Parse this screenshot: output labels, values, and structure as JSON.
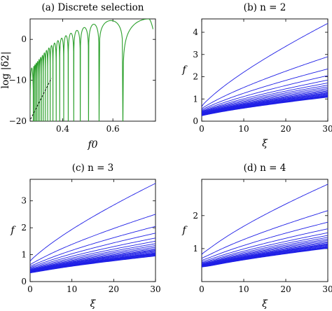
{
  "chart_data": [
    {
      "type": "line",
      "title": "(a) Discrete selection",
      "xlabel": "f0",
      "ylabel": "log |δ2|",
      "xlim": [
        0.27,
        0.77
      ],
      "ylim": [
        -20,
        5
      ],
      "xticks": [
        0.4,
        0.6
      ],
      "xtick_labels": [
        "0.4",
        "0.6"
      ],
      "yticks": [
        -20,
        -10,
        0
      ],
      "ytick_labels": [
        "−20",
        "−10",
        "0"
      ],
      "line_color": "#2ca02c",
      "cusp_roots": [
        0.283,
        0.287,
        0.292,
        0.297,
        0.303,
        0.309,
        0.316,
        0.323,
        0.331,
        0.34,
        0.35,
        0.361,
        0.374,
        0.388,
        0.404,
        0.422,
        0.444,
        0.47,
        0.503,
        0.545,
        0.64
      ],
      "hump_maxima": [
        -7,
        -6.6,
        -6.2,
        -5.8,
        -5.4,
        -4.9,
        -4.4,
        -3.9,
        -3.3,
        -2.7,
        -2.1,
        -1.5,
        -0.9,
        -0.3,
        0.3,
        0.9,
        1.5,
        2.2,
        2.9,
        3.7,
        4.6
      ],
      "end_point": [
        0.76,
        2.5
      ],
      "grid": false,
      "legend": "none"
    },
    {
      "type": "line",
      "title": "(b) n = 2",
      "xlabel": "ξ",
      "ylabel": "f",
      "xlim": [
        0,
        30
      ],
      "ylim": [
        0,
        4.6
      ],
      "xticks": [
        0,
        10,
        20,
        30
      ],
      "xtick_labels": [
        "0",
        "10",
        "20",
        "30"
      ],
      "yticks": [
        0,
        1,
        2,
        3,
        4
      ],
      "ytick_labels": [
        "0",
        "1",
        "2",
        "3",
        "4"
      ],
      "line_color": "#1f1fe6",
      "series_start_values": [
        0.65,
        0.55,
        0.5,
        0.46,
        0.43,
        0.41,
        0.39,
        0.37,
        0.35,
        0.34,
        0.33,
        0.32,
        0.31,
        0.3,
        0.29,
        0.28,
        0.27,
        0.26,
        0.25,
        0.245,
        0.24
      ],
      "series_end_values": [
        4.4,
        2.9,
        2.35,
        2.05,
        1.85,
        1.72,
        1.62,
        1.54,
        1.47,
        1.41,
        1.36,
        1.32,
        1.28,
        1.25,
        1.22,
        1.19,
        1.16,
        1.14,
        1.12,
        1.1,
        1.08
      ],
      "grid": false,
      "legend": "none"
    },
    {
      "type": "line",
      "title": "(c) n = 3",
      "xlabel": "ξ",
      "ylabel": "f",
      "xlim": [
        0,
        30
      ],
      "ylim": [
        0,
        3.8
      ],
      "xticks": [
        0,
        10,
        20,
        30
      ],
      "xtick_labels": [
        "0",
        "10",
        "20",
        "30"
      ],
      "yticks": [
        0,
        1,
        2,
        3
      ],
      "ytick_labels": [
        "0",
        "1",
        "2",
        "3"
      ],
      "line_color": "#1f1fe6",
      "series_start_values": [
        0.75,
        0.62,
        0.56,
        0.52,
        0.49,
        0.46,
        0.44,
        0.42,
        0.41,
        0.4,
        0.39,
        0.38,
        0.37,
        0.36,
        0.35,
        0.345,
        0.34,
        0.335,
        0.33,
        0.325,
        0.32
      ],
      "series_end_values": [
        3.65,
        2.5,
        2.05,
        1.8,
        1.62,
        1.5,
        1.41,
        1.34,
        1.28,
        1.23,
        1.19,
        1.16,
        1.13,
        1.1,
        1.07,
        1.05,
        1.03,
        1.01,
        0.99,
        0.97,
        0.95
      ],
      "grid": false,
      "legend": "none"
    },
    {
      "type": "line",
      "title": "(d) n = 4",
      "xlabel": "ξ",
      "ylabel": "f",
      "xlim": [
        0,
        30
      ],
      "ylim": [
        0,
        3.1
      ],
      "xticks": [
        0,
        10,
        20,
        30
      ],
      "xtick_labels": [
        "0",
        "10",
        "20",
        "30"
      ],
      "yticks": [
        1,
        2
      ],
      "ytick_labels": [
        "1",
        "2"
      ],
      "line_color": "#1f1fe6",
      "series_start_values": [
        0.82,
        0.7,
        0.64,
        0.6,
        0.57,
        0.55,
        0.53,
        0.52,
        0.51,
        0.5,
        0.49,
        0.485,
        0.48,
        0.475,
        0.47,
        0.465,
        0.46,
        0.455,
        0.45,
        0.445,
        0.44
      ],
      "series_end_values": [
        2.95,
        2.15,
        1.8,
        1.6,
        1.48,
        1.4,
        1.34,
        1.29,
        1.25,
        1.21,
        1.18,
        1.15,
        1.13,
        1.11,
        1.09,
        1.07,
        1.05,
        1.04,
        1.03,
        1.02,
        1.01
      ],
      "grid": false,
      "legend": "none"
    }
  ]
}
